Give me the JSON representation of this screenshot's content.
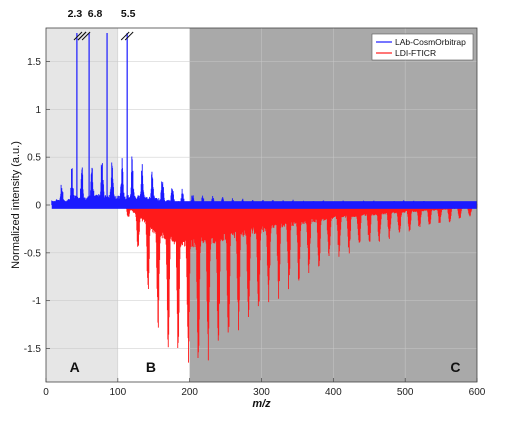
{
  "chart_data": {
    "type": "line",
    "title": "",
    "xlabel": "m/z",
    "ylabel": "Normalized intensity (a.u.)",
    "xlim": [
      0,
      600
    ],
    "ylim": [
      -1.85,
      1.85
    ],
    "xticks": [
      0,
      100,
      200,
      300,
      400,
      500,
      600
    ],
    "yticks": [
      1.5,
      1,
      0.5,
      0,
      -0.5,
      -1,
      -1.5
    ],
    "ytick_labels": [
      "1.5",
      "1",
      "0.5",
      "0",
      "-0.5",
      "-1",
      "-1.5"
    ],
    "grid": true,
    "legend_position": "top-right",
    "regions": [
      {
        "label": "A",
        "x_range": [
          0,
          100
        ],
        "color": "#e6e6e6"
      },
      {
        "label": "B",
        "x_range": [
          100,
          200
        ],
        "color": "#ffffff"
      },
      {
        "label": "C",
        "x_range": [
          200,
          600
        ],
        "color": "#a9a9a9"
      }
    ],
    "series": [
      {
        "name": "LAb-CosmOrbitrap",
        "color": "#1a1aff",
        "direction": "positive",
        "envelope": [
          [
            8,
            0.05
          ],
          [
            15,
            0.32
          ],
          [
            25,
            0.25
          ],
          [
            40,
            0.5
          ],
          [
            55,
            0.4
          ],
          [
            70,
            0.62
          ],
          [
            85,
            0.55
          ],
          [
            100,
            0.5
          ],
          [
            120,
            0.55
          ],
          [
            140,
            0.45
          ],
          [
            160,
            0.35
          ],
          [
            180,
            0.22
          ],
          [
            200,
            0.14
          ],
          [
            250,
            0.08
          ],
          [
            300,
            0.06
          ],
          [
            400,
            0.05
          ],
          [
            500,
            0.05
          ],
          [
            600,
            0.04
          ]
        ],
        "clipped_peaks": [
          {
            "x": 43,
            "value_label": "2.3"
          },
          {
            "x": 60,
            "value_label": "6.8"
          },
          {
            "x": 85,
            "value_label": ""
          },
          {
            "x": 113,
            "value_label": "5.5"
          }
        ]
      },
      {
        "name": "LDI-FTICR",
        "color": "#ff1a1a",
        "direction": "negative",
        "envelope": [
          [
            100,
            0
          ],
          [
            110,
            -0.05
          ],
          [
            125,
            -0.4
          ],
          [
            150,
            -1.2
          ],
          [
            175,
            -1.65
          ],
          [
            195,
            -1.8
          ],
          [
            215,
            -1.75
          ],
          [
            250,
            -1.5
          ],
          [
            300,
            -1.15
          ],
          [
            350,
            -0.85
          ],
          [
            400,
            -0.6
          ],
          [
            450,
            -0.45
          ],
          [
            500,
            -0.32
          ],
          [
            550,
            -0.22
          ],
          [
            600,
            -0.12
          ]
        ]
      }
    ]
  }
}
